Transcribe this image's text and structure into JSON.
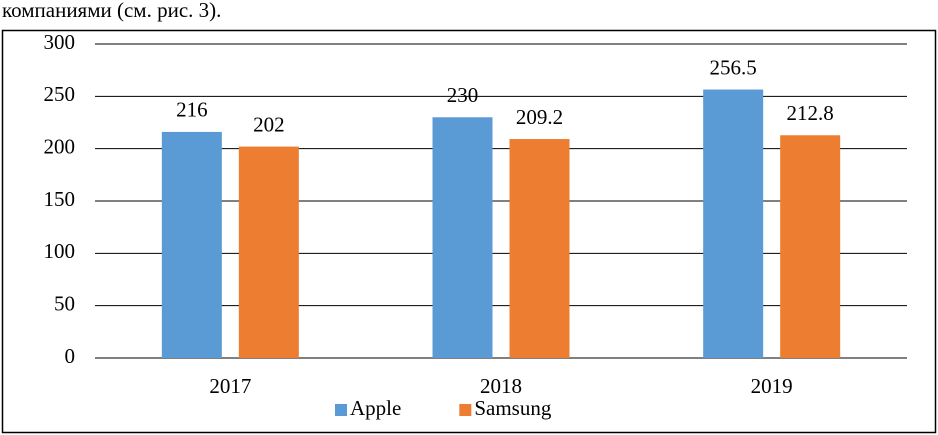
{
  "text_above": "компаниями (см. рис. 3).",
  "chart_data": {
    "type": "bar",
    "categories": [
      "2017",
      "2018",
      "2019"
    ],
    "series": [
      {
        "name": "Apple",
        "color": "#5b9bd5",
        "values": [
          216,
          230,
          256.5
        ]
      },
      {
        "name": "Samsung",
        "color": "#ed7d31",
        "values": [
          202,
          209.2,
          212.8
        ]
      }
    ],
    "ylim": [
      0,
      300
    ],
    "yticks": [
      0,
      50,
      100,
      150,
      200,
      250,
      300
    ],
    "grid": true,
    "legend": "bottom",
    "data_labels": true
  }
}
